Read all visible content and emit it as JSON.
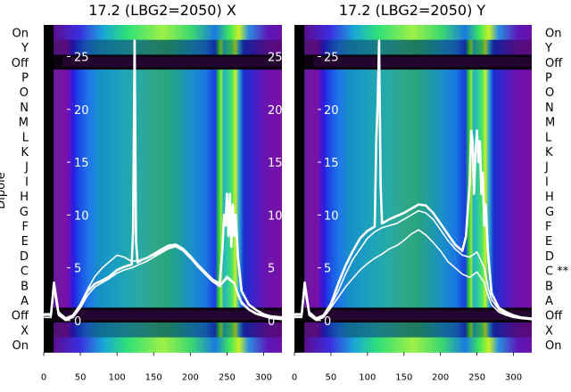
{
  "chart_data": {
    "type": "heatmap",
    "y_axis_label": "Dipole",
    "row_labels": [
      "On",
      "Y",
      "Off",
      "P",
      "O",
      "N",
      "M",
      "L",
      "K",
      "J",
      "I",
      "H",
      "G",
      "F",
      "E",
      "D",
      "C",
      "B",
      "A",
      "Off",
      "X",
      "On"
    ],
    "x_axis": {
      "range": [
        0,
        325
      ],
      "ticks": [
        0,
        50,
        100,
        150,
        200,
        250,
        300
      ]
    },
    "overlay_axis": {
      "range": [
        -3,
        28
      ],
      "ticks": [
        0,
        5,
        10,
        15,
        20,
        25
      ]
    },
    "colors": {
      "text": "#000000",
      "overlay_line": "#ffffff",
      "background_band": "#7a10a8"
    },
    "panels": [
      {
        "id": "x",
        "title": "17.2 (LBG2=2050) X",
        "row_annotations": {},
        "series": [
          {
            "x": [
              0,
              10,
              14,
              20,
              30,
              40,
              50,
              60,
              70,
              80,
              90,
              100,
              110,
              120,
              122,
              124,
              126,
              128,
              135,
              140,
              150,
              160,
              170,
              180,
              190,
              200,
              210,
              220,
              230,
              240,
              244,
              246,
              248,
              250,
              252,
              254,
              256,
              258,
              260,
              262,
              265,
              270,
              280,
              290,
              300,
              310,
              325
            ],
            "y": [
              0.6,
              0.6,
              3.6,
              0.8,
              0.2,
              0.5,
              1.5,
              2.8,
              3.5,
              3.8,
              4.2,
              4.8,
              5.1,
              5.3,
              8.5,
              26.5,
              7.5,
              5.5,
              5.8,
              5.9,
              6.3,
              6.7,
              7.1,
              7.2,
              6.8,
              6.1,
              5.3,
              4.6,
              3.9,
              3.5,
              7,
              10,
              9,
              12,
              8,
              12,
              7,
              11,
              8,
              10,
              6,
              2.8,
              1.5,
              1.0,
              0.6,
              0.4,
              0.3
            ]
          },
          {
            "x": [
              0,
              10,
              14,
              20,
              30,
              40,
              50,
              60,
              70,
              80,
              90,
              100,
              110,
              120,
              130,
              140,
              150,
              160,
              170,
              180,
              190,
              200,
              210,
              220,
              230,
              240,
              250,
              260,
              265,
              270,
              280,
              290,
              300,
              310,
              325
            ],
            "y": [
              0.3,
              0.3,
              3.0,
              0.5,
              0.0,
              0.3,
              1.2,
              2.4,
              3.2,
              3.6,
              4.0,
              4.5,
              4.8,
              5.0,
              5.3,
              5.6,
              6.0,
              6.4,
              6.8,
              7.0,
              6.6,
              5.9,
              5.1,
              4.4,
              3.7,
              3.2,
              4.0,
              3.5,
              2.4,
              1.6,
              1.0,
              0.6,
              0.4,
              0.2,
              0.1
            ]
          },
          {
            "x": [
              0,
              10,
              14,
              20,
              30,
              40,
              50,
              60,
              70,
              80,
              90,
              100,
              110,
              120,
              130,
              140,
              150,
              160,
              170,
              180,
              190,
              200,
              210,
              220,
              230,
              240,
              250,
              260,
              265,
              270,
              280,
              290,
              300,
              310,
              325
            ],
            "y": [
              0.5,
              0.5,
              3.3,
              0.6,
              0.1,
              0.4,
              1.6,
              3.0,
              4.2,
              5.0,
              5.6,
              6.2,
              6.0,
              5.6,
              5.7,
              5.9,
              6.2,
              6.5,
              6.9,
              7.1,
              6.7,
              6.0,
              5.2,
              4.5,
              3.8,
              3.3,
              4.2,
              3.6,
              2.6,
              1.8,
              1.1,
              0.7,
              0.5,
              0.3,
              0.2
            ]
          }
        ]
      },
      {
        "id": "y",
        "title": "17.2 (LBG2=2050) Y",
        "row_annotations": {
          "C": "**"
        },
        "series": [
          {
            "x": [
              0,
              10,
              14,
              20,
              30,
              40,
              50,
              60,
              70,
              80,
              90,
              100,
              110,
              112,
              114,
              116,
              118,
              120,
              130,
              140,
              150,
              160,
              170,
              180,
              190,
              200,
              210,
              220,
              230,
              235,
              240,
              242,
              244,
              246,
              248,
              250,
              252,
              254,
              256,
              258,
              260,
              262,
              265,
              270,
              280,
              290,
              300,
              310,
              325
            ],
            "y": [
              0.6,
              0.6,
              3.6,
              0.8,
              0.2,
              0.5,
              1.6,
              3.5,
              5.2,
              6.6,
              7.8,
              8.5,
              8.9,
              17,
              20.5,
              26.5,
              13,
              9.2,
              9.6,
              9.9,
              10.2,
              10.6,
              11.0,
              10.9,
              10.2,
              9.2,
              8.2,
              7.2,
              6.6,
              8,
              13,
              18,
              17,
              12,
              16,
              18,
              15,
              17,
              12,
              14,
              9,
              11,
              6.5,
              2.6,
              1.2,
              0.8,
              0.5,
              0.3,
              0.2
            ]
          },
          {
            "x": [
              0,
              10,
              14,
              20,
              30,
              40,
              50,
              60,
              70,
              80,
              90,
              100,
              110,
              120,
              130,
              140,
              150,
              160,
              170,
              180,
              190,
              200,
              210,
              220,
              230,
              240,
              250,
              260,
              265,
              270,
              280,
              290,
              300,
              310,
              325
            ],
            "y": [
              0.4,
              0.4,
              3.2,
              0.6,
              0.1,
              0.4,
              1.4,
              2.8,
              4.4,
              5.8,
              6.8,
              7.8,
              8.4,
              8.8,
              9.0,
              9.2,
              9.6,
              10.0,
              10.4,
              10.2,
              9.6,
              8.6,
              7.6,
              6.8,
              6.2,
              6.0,
              6.5,
              5.0,
              3.2,
              2.0,
              1.0,
              0.6,
              0.4,
              0.2,
              0.1
            ]
          },
          {
            "x": [
              0,
              10,
              14,
              20,
              30,
              40,
              50,
              60,
              70,
              80,
              90,
              100,
              110,
              120,
              130,
              140,
              150,
              160,
              170,
              180,
              190,
              200,
              210,
              220,
              230,
              240,
              250,
              260,
              265,
              270,
              280,
              290,
              300,
              310,
              325
            ],
            "y": [
              0.3,
              0.3,
              3.0,
              0.5,
              0.0,
              0.3,
              1.2,
              2.2,
              3.2,
              4.0,
              4.8,
              5.4,
              5.9,
              6.3,
              6.8,
              7.1,
              7.6,
              8.2,
              8.6,
              8.1,
              7.4,
              6.6,
              5.6,
              5.0,
              4.4,
              4.1,
              4.6,
              3.6,
              2.4,
              1.5,
              0.8,
              0.5,
              0.3,
              0.2,
              0.1
            ]
          }
        ]
      }
    ]
  }
}
